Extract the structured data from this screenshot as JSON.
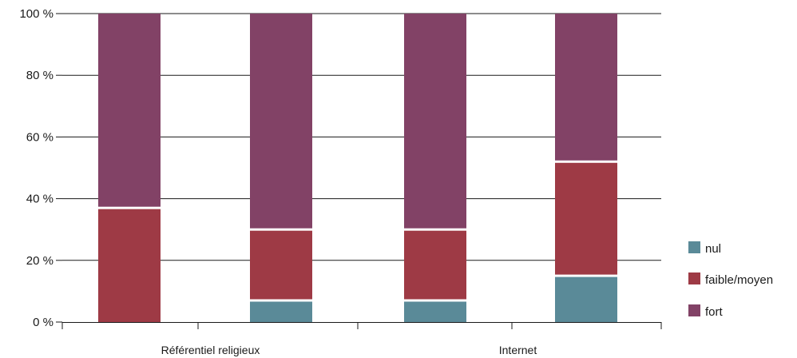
{
  "chart_data": {
    "type": "bar",
    "stacked": true,
    "title": "",
    "xlabel": "",
    "ylabel": "",
    "ylim": [
      0,
      100
    ],
    "y_ticks": [
      "0 %",
      "20 %",
      "40 %",
      "60 %",
      "80 %",
      "100 %"
    ],
    "grid": true,
    "legend_position": "right-bottom",
    "group_labels": [
      "Référentiel religieux",
      "Internet"
    ],
    "bars_per_group": 2,
    "series": [
      {
        "name": "nul",
        "color": "#5a8a98",
        "values": [
          0,
          7,
          7,
          15
        ]
      },
      {
        "name": "faible/moyen",
        "color": "#9e3a45",
        "values": [
          37,
          23,
          23,
          37
        ]
      },
      {
        "name": "fort",
        "color": "#824266",
        "values": [
          63,
          70,
          70,
          48
        ]
      }
    ]
  }
}
